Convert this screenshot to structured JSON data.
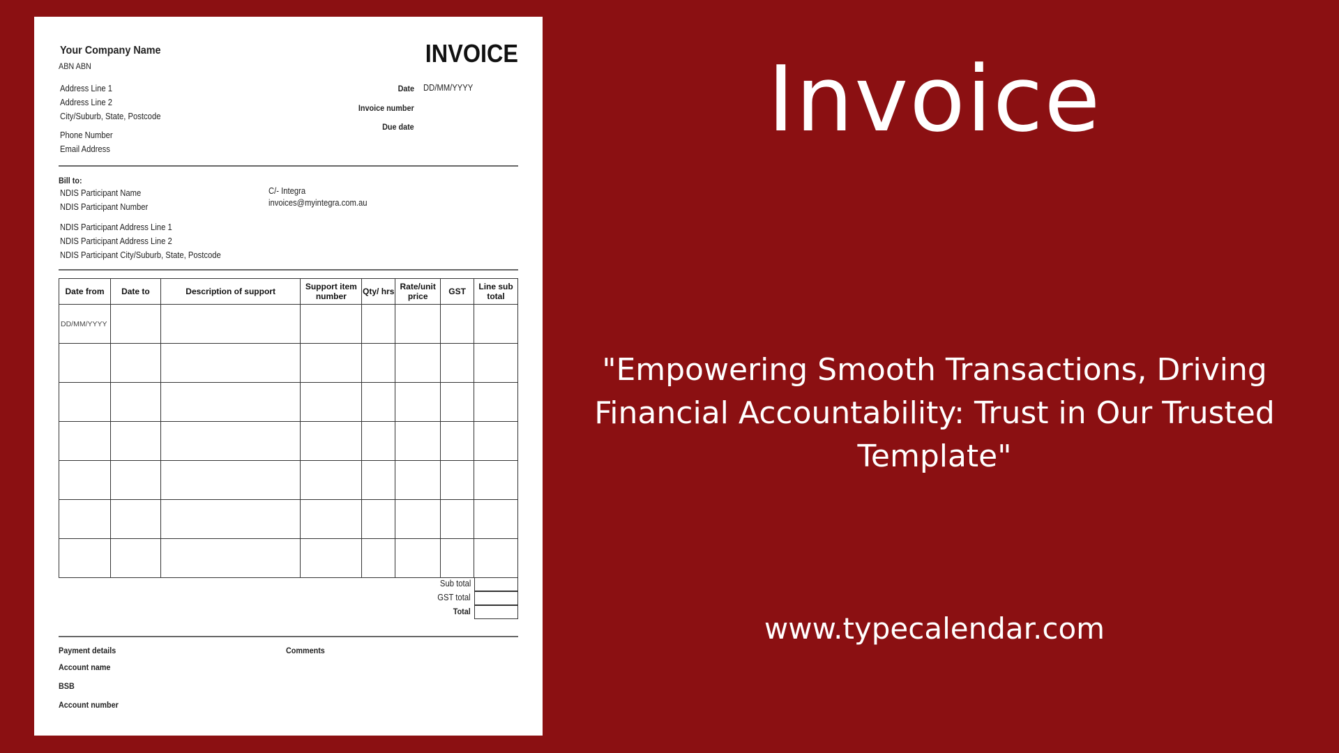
{
  "invoice": {
    "company_name": "Your Company Name",
    "abn": "ABN  ABN",
    "address": [
      "Address Line 1",
      "Address Line 2",
      "City/Suburb, State, Postcode"
    ],
    "phone": "Phone Number",
    "email": "Email Address",
    "title": "INVOICE",
    "date_label": "Date",
    "date_value": "DD/MM/YYYY",
    "invoice_number_label": "Invoice number",
    "due_date_label": "Due date",
    "bill_to_label": "Bill to:",
    "participant": [
      "NDIS Participant Name",
      "NDIS Participant Number"
    ],
    "participant_address": [
      "NDIS Participant Address Line 1",
      "NDIS Participant Address Line 2",
      "NDIS Participant City/Suburb, State, Postcode"
    ],
    "care_of": "C/- Integra",
    "care_of_email": "invoices@myintegra.com.au",
    "table": {
      "headers": [
        "Date from",
        "Date to",
        "Description of support",
        "Support item number",
        "Qty/ hrs",
        "Rate/unit price",
        "GST",
        "Line sub total"
      ],
      "rows": [
        [
          "DD/MM/YYYY",
          "",
          "",
          "",
          "",
          "",
          "",
          ""
        ],
        [
          "",
          "",
          "",
          "",
          "",
          "",
          "",
          ""
        ],
        [
          "",
          "",
          "",
          "",
          "",
          "",
          "",
          ""
        ],
        [
          "",
          "",
          "",
          "",
          "",
          "",
          "",
          ""
        ],
        [
          "",
          "",
          "",
          "",
          "",
          "",
          "",
          ""
        ],
        [
          "",
          "",
          "",
          "",
          "",
          "",
          "",
          ""
        ],
        [
          "",
          "",
          "",
          "",
          "",
          "",
          "",
          ""
        ]
      ]
    },
    "sub_total_label": "Sub total",
    "gst_total_label": "GST total",
    "total_label": "Total",
    "payment_details_label": "Payment details",
    "account_name_label": "Account name",
    "bsb_label": "BSB",
    "account_number_label": "Account number",
    "comments_label": "Comments"
  },
  "promo": {
    "title": "Invoice",
    "quote_lines": [
      "\"Empowering Smooth Transactions, Driving",
      "Financial Accountability: Trust in Our Trusted",
      "Template\""
    ],
    "url": "www.typecalendar.com",
    "background_color": "#8b1012"
  }
}
